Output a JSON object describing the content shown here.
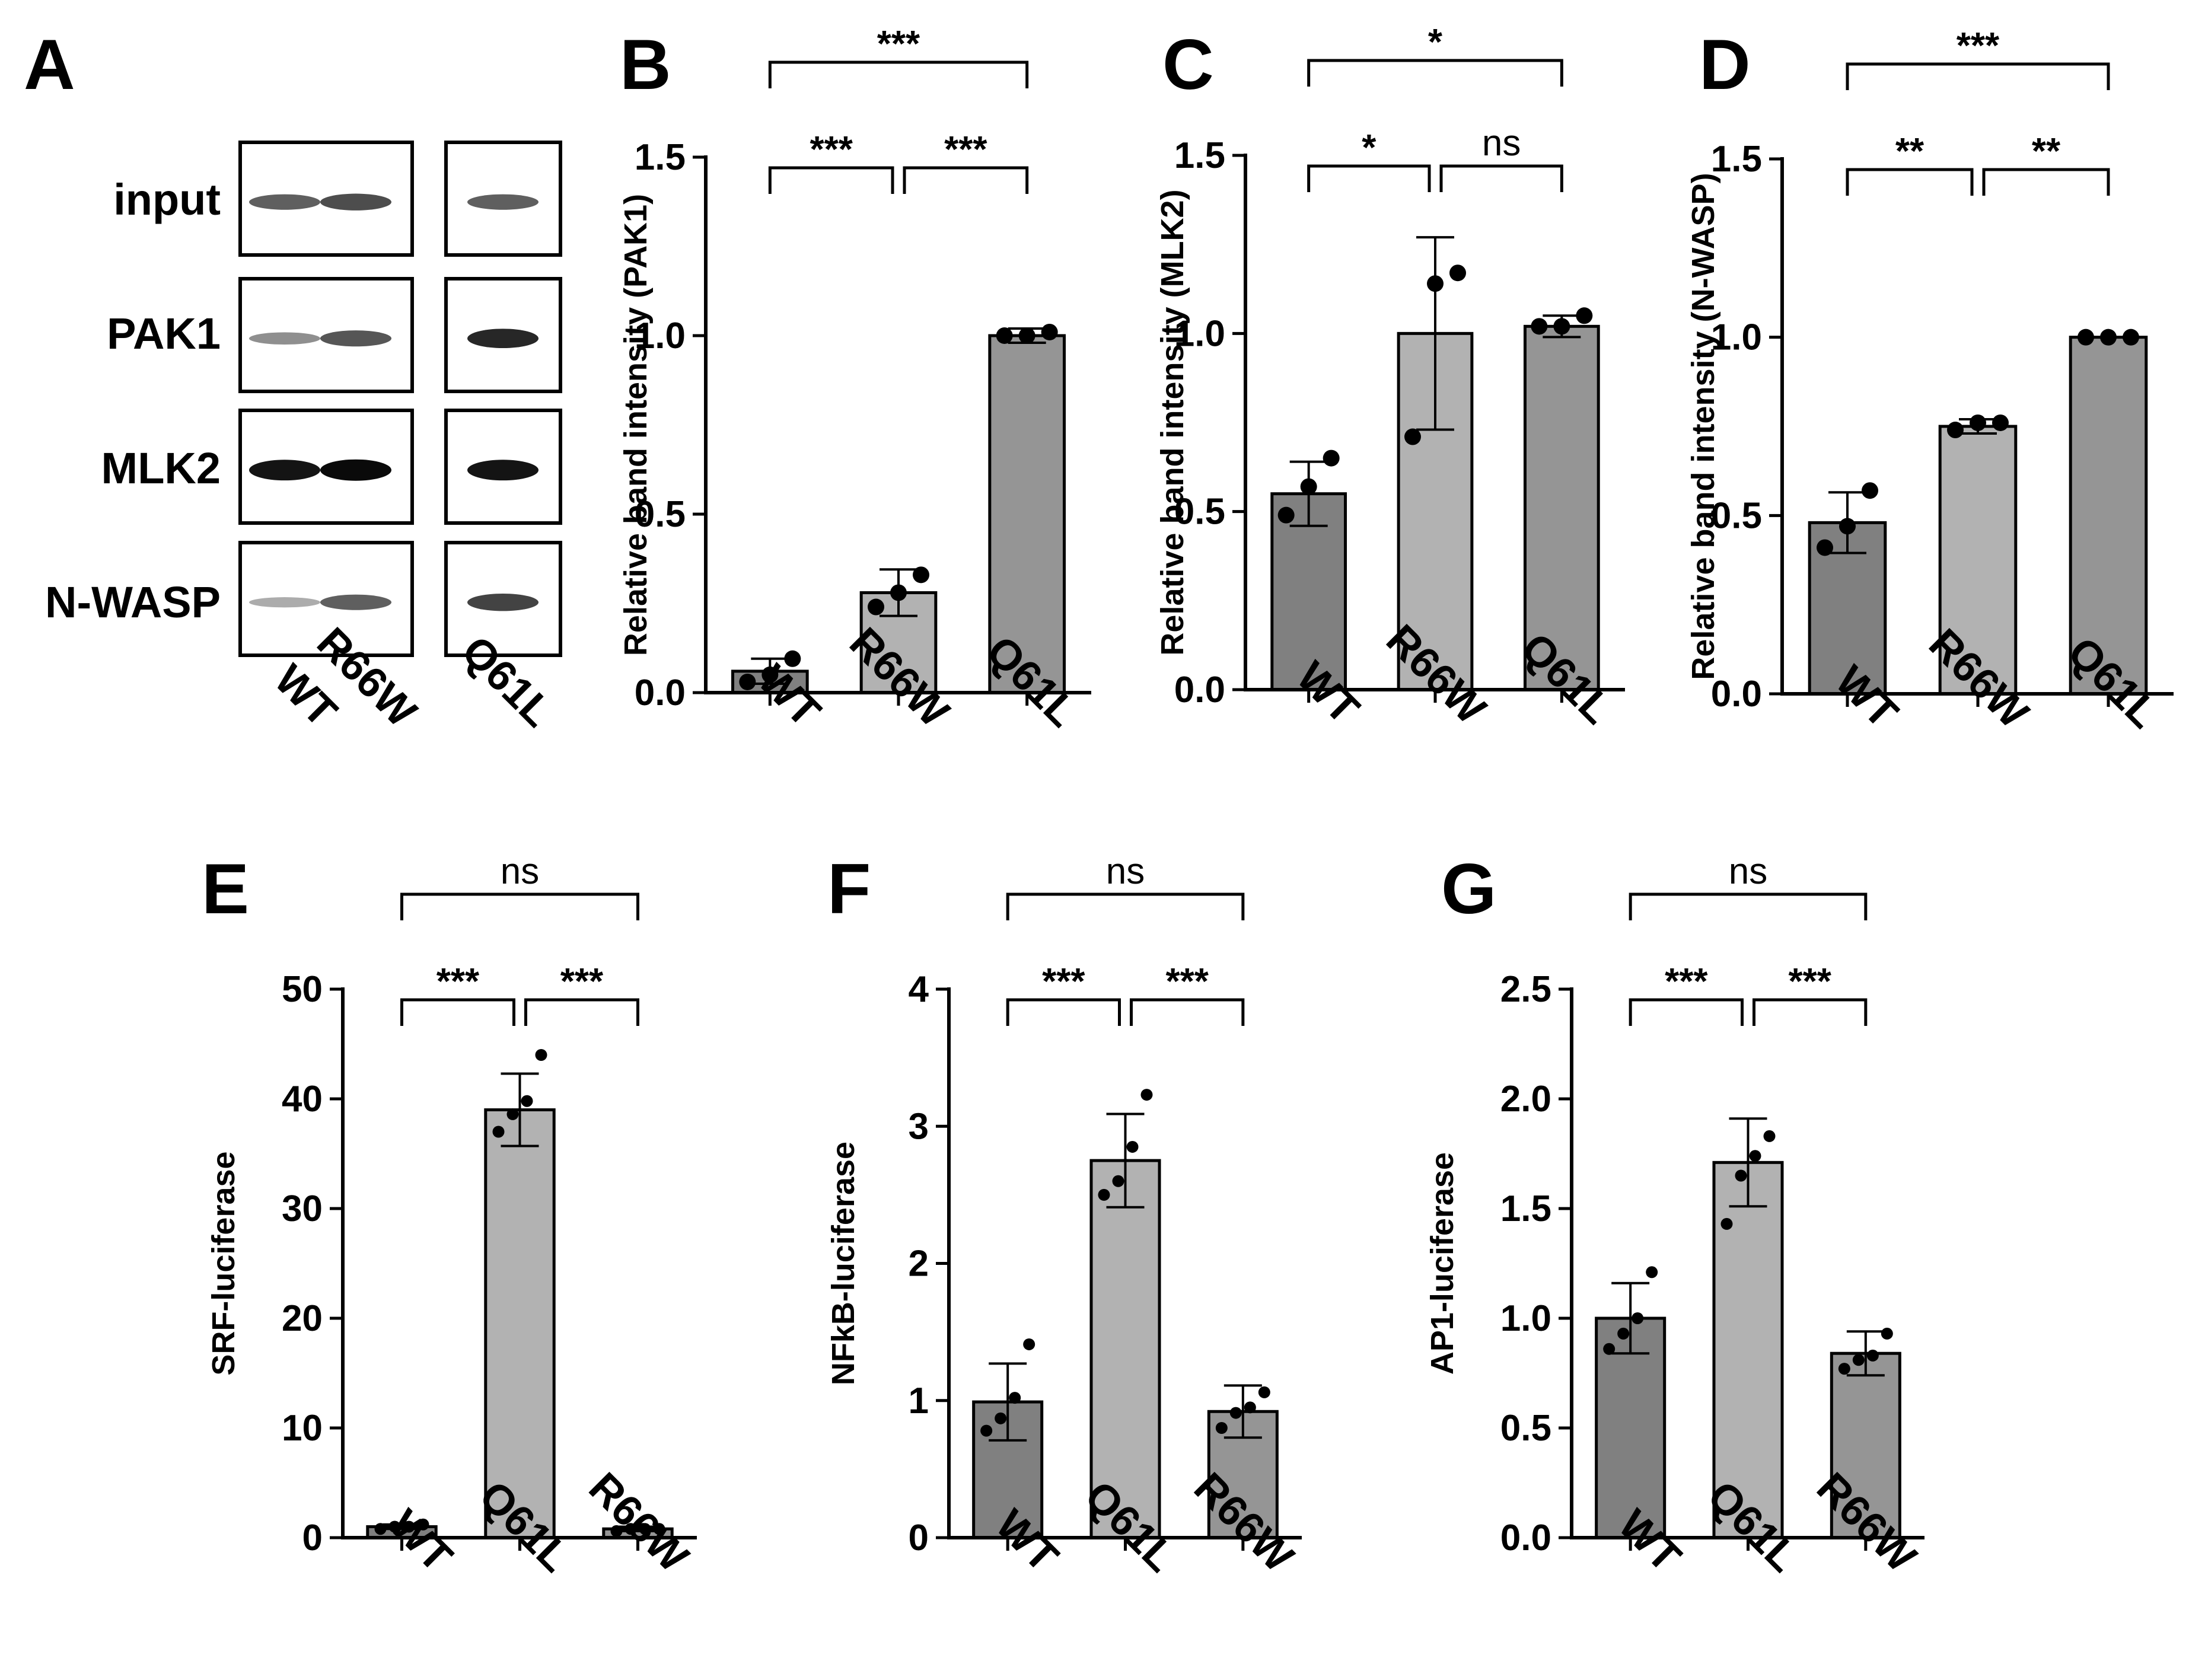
{
  "colors": {
    "wt_bar": "#808080",
    "mut1_bar": "#b2b2b2",
    "mut2_bar": "#959595",
    "ink": "#000000"
  },
  "blot": {
    "letter": "A",
    "rows": [
      "input",
      "PAK1",
      "MLK2",
      "N-WASP"
    ],
    "lanes": [
      "WT",
      "R66W",
      "Q61L"
    ],
    "band_intensity": [
      [
        0.55,
        0.65,
        0.55
      ],
      [
        0.3,
        0.6,
        0.85
      ],
      [
        0.95,
        1.0,
        0.95
      ],
      [
        0.15,
        0.55,
        0.7
      ]
    ]
  },
  "chart_data": [
    {
      "letter": "B",
      "type": "bar",
      "categories": [
        "WT",
        "R66W",
        "Q61L"
      ],
      "values": [
        0.06,
        0.28,
        1.0
      ],
      "error": [
        0.035,
        0.065,
        0.02
      ],
      "points": [
        [
          0.03,
          0.05,
          0.095
        ],
        [
          0.24,
          0.28,
          0.33
        ],
        [
          1.0,
          1.0,
          1.01
        ]
      ],
      "ylabel": "Relative band intensity (PAK1)",
      "ylim": [
        0,
        1.5
      ],
      "yticks": [
        0.0,
        0.5,
        1.0,
        1.5
      ],
      "tick_labels": [
        "0.0",
        "0.5",
        "1.0",
        "1.5"
      ],
      "comparisons": [
        {
          "a": 0,
          "b": 1,
          "label": "***",
          "tier": 0
        },
        {
          "a": 1,
          "b": 2,
          "label": "***",
          "tier": 0
        },
        {
          "a": 0,
          "b": 2,
          "label": "***",
          "tier": 1
        }
      ]
    },
    {
      "letter": "C",
      "type": "bar",
      "categories": [
        "WT",
        "R66W",
        "Q61L"
      ],
      "values": [
        0.55,
        1.0,
        1.02
      ],
      "error": [
        0.09,
        0.27,
        0.03
      ],
      "points": [
        [
          0.49,
          0.57,
          0.65
        ],
        [
          0.71,
          1.14,
          1.17
        ],
        [
          1.02,
          1.02,
          1.05
        ]
      ],
      "ylabel": "Relative band intensity (MLK2)",
      "ylim": [
        0,
        1.5
      ],
      "yticks": [
        0.0,
        0.5,
        1.0,
        1.5
      ],
      "tick_labels": [
        "0.0",
        "0.5",
        "1.0",
        "1.5"
      ],
      "comparisons": [
        {
          "a": 0,
          "b": 1,
          "label": "*",
          "tier": 0
        },
        {
          "a": 1,
          "b": 2,
          "label": "ns",
          "tier": 0
        },
        {
          "a": 0,
          "b": 2,
          "label": "*",
          "tier": 1
        }
      ]
    },
    {
      "letter": "D",
      "type": "bar",
      "categories": [
        "WT",
        "R66W",
        "Q61L"
      ],
      "values": [
        0.48,
        0.75,
        1.0
      ],
      "error": [
        0.085,
        0.02,
        0.0
      ],
      "points": [
        [
          0.41,
          0.47,
          0.57
        ],
        [
          0.74,
          0.76,
          0.76
        ],
        [
          1.0,
          1.0,
          1.0
        ]
      ],
      "ylabel": "Relative band intensity (N-WASP)",
      "ylim": [
        0,
        1.5
      ],
      "yticks": [
        0.0,
        0.5,
        1.0,
        1.5
      ],
      "tick_labels": [
        "0.0",
        "0.5",
        "1.0",
        "1.5"
      ],
      "comparisons": [
        {
          "a": 0,
          "b": 1,
          "label": "**",
          "tier": 0
        },
        {
          "a": 1,
          "b": 2,
          "label": "**",
          "tier": 0
        },
        {
          "a": 0,
          "b": 2,
          "label": "***",
          "tier": 1
        }
      ]
    },
    {
      "letter": "E",
      "type": "bar",
      "categories": [
        "WT",
        "Q61L",
        "R66W"
      ],
      "values": [
        1.0,
        39.0,
        0.8
      ],
      "error": [
        0.2,
        3.3,
        0.2
      ],
      "points": [
        [
          0.8,
          1.0,
          1.0,
          1.2
        ],
        [
          37.0,
          38.6,
          39.8,
          44.0
        ],
        [
          0.6,
          0.8,
          0.8,
          0.8
        ]
      ],
      "ylabel": "SRF-luciferase",
      "ylim": [
        0,
        50
      ],
      "yticks": [
        0,
        10,
        20,
        30,
        40,
        50
      ],
      "tick_labels": [
        "0",
        "10",
        "20",
        "30",
        "40",
        "50"
      ],
      "comparisons": [
        {
          "a": 0,
          "b": 1,
          "label": "***",
          "tier": 0
        },
        {
          "a": 1,
          "b": 2,
          "label": "***",
          "tier": 0
        },
        {
          "a": 0,
          "b": 2,
          "label": "ns",
          "tier": 1
        }
      ]
    },
    {
      "letter": "F",
      "type": "bar",
      "categories": [
        "WT",
        "Q61L",
        "R66W"
      ],
      "values": [
        0.99,
        2.75,
        0.92
      ],
      "error": [
        0.28,
        0.34,
        0.19
      ],
      "points": [
        [
          0.78,
          0.87,
          1.02,
          1.41
        ],
        [
          2.5,
          2.6,
          2.85,
          3.23
        ],
        [
          0.8,
          0.91,
          0.95,
          1.06
        ]
      ],
      "ylabel": "NFkB-luciferase",
      "ylim": [
        0,
        4
      ],
      "yticks": [
        0,
        1,
        2,
        3,
        4
      ],
      "tick_labels": [
        "0",
        "1",
        "2",
        "3",
        "4"
      ],
      "comparisons": [
        {
          "a": 0,
          "b": 1,
          "label": "***",
          "tier": 0
        },
        {
          "a": 1,
          "b": 2,
          "label": "***",
          "tier": 0
        },
        {
          "a": 0,
          "b": 2,
          "label": "ns",
          "tier": 1
        }
      ]
    },
    {
      "letter": "G",
      "type": "bar",
      "categories": [
        "WT",
        "Q61L",
        "R66W"
      ],
      "values": [
        1.0,
        1.71,
        0.84
      ],
      "error": [
        0.16,
        0.2,
        0.1
      ],
      "points": [
        [
          0.86,
          0.93,
          1.0,
          1.21
        ],
        [
          1.43,
          1.65,
          1.74,
          1.83
        ],
        [
          0.77,
          0.81,
          0.83,
          0.93
        ]
      ],
      "ylabel": "AP1-luciferase",
      "ylim": [
        0,
        2.5
      ],
      "yticks": [
        0.0,
        0.5,
        1.0,
        1.5,
        2.0,
        2.5
      ],
      "tick_labels": [
        "0.0",
        "0.5",
        "1.0",
        "1.5",
        "2.0",
        "2.5"
      ],
      "comparisons": [
        {
          "a": 0,
          "b": 1,
          "label": "***",
          "tier": 0
        },
        {
          "a": 1,
          "b": 2,
          "label": "***",
          "tier": 0
        },
        {
          "a": 0,
          "b": 2,
          "label": "ns",
          "tier": 1
        }
      ]
    }
  ]
}
